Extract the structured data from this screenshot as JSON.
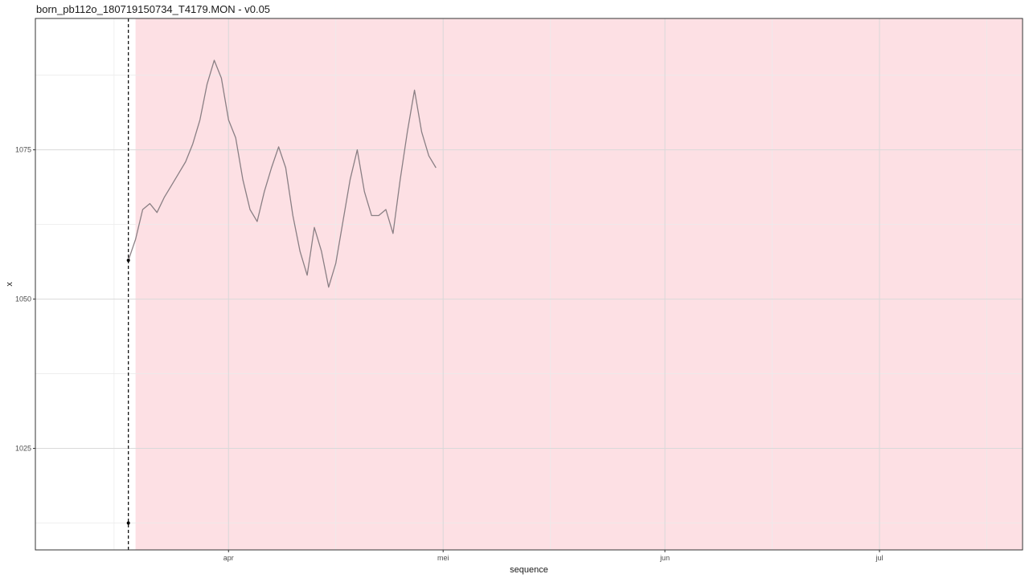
{
  "window": {
    "title": "born_pb112o_180719150734_T4179.MON - v0.05"
  },
  "colors": {
    "background": "#ffffff",
    "panel_border": "#333333",
    "grid_major": "#d9d9d9",
    "grid_minor": "#ebebeb",
    "shaded_region": "#fde0e4",
    "line": "#8a7f84",
    "marker_line": "#000000"
  },
  "chart_data": {
    "type": "line",
    "title": "born_pb112o_180719150734_T4179.MON - v0.05",
    "xlabel": "sequence",
    "ylabel": "x",
    "x_axis": {
      "ticks": [
        {
          "date": "2018-04-01",
          "label": "apr"
        },
        {
          "date": "2018-05-01",
          "label": "mei"
        },
        {
          "date": "2018-06-01",
          "label": "jun"
        },
        {
          "date": "2018-07-01",
          "label": "jul"
        }
      ],
      "minor_ticks": [
        "2018-03-16",
        "2018-04-16",
        "2018-05-16",
        "2018-06-16",
        "2018-07-16"
      ],
      "range": [
        "2018-03-05",
        "2018-07-21"
      ]
    },
    "y_axis": {
      "ticks": [
        1025,
        1050,
        1075
      ],
      "minor_ticks": [
        1012.5,
        1037.5,
        1062.5,
        1087.5
      ],
      "range": [
        1008,
        1097
      ]
    },
    "grid": true,
    "shaded_region": {
      "start": "2018-03-19",
      "end": "2018-07-24"
    },
    "vertical_marker": {
      "date": "2018-03-18",
      "style": "dashed",
      "y_points": [
        1056.5,
        1012.5
      ]
    },
    "series": [
      {
        "points": [
          [
            "2018-03-18",
            1056.5
          ],
          [
            "2018-03-19",
            1060
          ],
          [
            "2018-03-20",
            1065
          ],
          [
            "2018-03-21",
            1066
          ],
          [
            "2018-03-22",
            1064.5
          ],
          [
            "2018-03-23",
            1067
          ],
          [
            "2018-03-24",
            1069
          ],
          [
            "2018-03-25",
            1071
          ],
          [
            "2018-03-26",
            1073
          ],
          [
            "2018-03-27",
            1076
          ],
          [
            "2018-03-28",
            1080
          ],
          [
            "2018-03-29",
            1086
          ],
          [
            "2018-03-30",
            1090
          ],
          [
            "2018-03-31",
            1087
          ],
          [
            "2018-04-01",
            1080
          ],
          [
            "2018-04-02",
            1077
          ],
          [
            "2018-04-03",
            1070
          ],
          [
            "2018-04-04",
            1065
          ],
          [
            "2018-04-05",
            1063
          ],
          [
            "2018-04-06",
            1068
          ],
          [
            "2018-04-07",
            1072
          ],
          [
            "2018-04-08",
            1075.5
          ],
          [
            "2018-04-09",
            1072
          ],
          [
            "2018-04-10",
            1064
          ],
          [
            "2018-04-11",
            1058
          ],
          [
            "2018-04-12",
            1054
          ],
          [
            "2018-04-13",
            1062
          ],
          [
            "2018-04-14",
            1058
          ],
          [
            "2018-04-15",
            1052
          ],
          [
            "2018-04-16",
            1056
          ],
          [
            "2018-04-17",
            1063
          ],
          [
            "2018-04-18",
            1070
          ],
          [
            "2018-04-19",
            1075
          ],
          [
            "2018-04-20",
            1068
          ],
          [
            "2018-04-21",
            1064
          ],
          [
            "2018-04-22",
            1064
          ],
          [
            "2018-04-23",
            1065
          ],
          [
            "2018-04-24",
            1061
          ],
          [
            "2018-04-25",
            1070
          ],
          [
            "2018-04-26",
            1078
          ],
          [
            "2018-04-27",
            1085
          ],
          [
            "2018-04-28",
            1078
          ],
          [
            "2018-04-29",
            1074
          ],
          [
            "2018-04-30",
            1072
          ]
        ]
      }
    ]
  }
}
